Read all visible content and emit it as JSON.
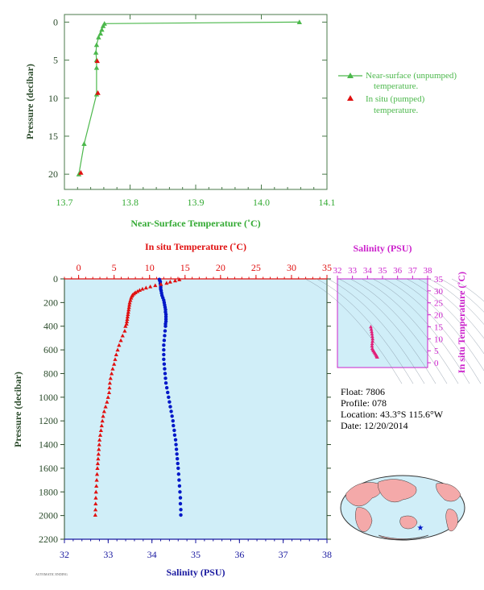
{
  "top_chart_legend": {
    "near_surface_line1": "Near-surface (unpumped)",
    "near_surface_line2": "temperature.",
    "in_situ_line1": "In situ (pumped)",
    "in_situ_line2": "temperature."
  },
  "info": {
    "float": "Float:  7806",
    "profile": "Profile:  078",
    "location": "Location:  43.3°S  115.6°W",
    "date": "Date:  12/20/2014"
  },
  "footer_code": "AUTOMATIC ENDING",
  "colors": {
    "near_surface": "#4cb84c",
    "in_situ": "#e01010",
    "salinity": "#0018c8",
    "salinity_axis": "#1a1aa0",
    "magenta": "#cc22cc",
    "plot_bg": "#d0eef8",
    "axis_green": "#33aa33",
    "label_dark": "#2a4a2a",
    "ts_points": "#e0207a"
  },
  "chart_data": [
    {
      "id": "top",
      "type": "line",
      "xlabel": "Near-Surface Temperature (˚C)",
      "ylabel": "Pressure (decibar)",
      "xlim": [
        13.7,
        14.1
      ],
      "ylim": [
        22,
        -1
      ],
      "xticks": [
        13.7,
        13.8,
        13.9,
        14.0,
        14.1
      ],
      "xtick_labels": [
        "13.7",
        "13.8",
        "13.9",
        "14.0",
        "14.1"
      ],
      "yticks": [
        0,
        5,
        10,
        15,
        20
      ],
      "series": [
        {
          "name": "Near-surface (unpumped) temperature.",
          "type": "line",
          "points": [
            [
              14.058,
              0.0
            ],
            [
              13.761,
              0.2
            ],
            [
              13.759,
              0.5
            ],
            [
              13.757,
              1.0
            ],
            [
              13.755,
              1.5
            ],
            [
              13.752,
              2.0
            ],
            [
              13.749,
              3.0
            ],
            [
              13.748,
              4.0
            ],
            [
              13.749,
              5.0
            ],
            [
              13.749,
              6.0
            ],
            [
              13.749,
              9.5
            ],
            [
              13.73,
              16.0
            ],
            [
              13.722,
              20.0
            ]
          ]
        },
        {
          "name": "In situ (pumped) temperature.",
          "type": "scatter",
          "points": [
            [
              13.75,
              5.1
            ],
            [
              13.751,
              9.3
            ],
            [
              13.725,
              19.8
            ]
          ]
        }
      ]
    },
    {
      "id": "main",
      "type": "scatter",
      "ylabel": "Pressure (decibar)",
      "top_xlabel": "In situ Temperature (˚C)",
      "bottom_xlabel": "Salinity (PSU)",
      "temp_xlim": [
        -2,
        35
      ],
      "temp_ticks": [
        0,
        5,
        10,
        15,
        20,
        25,
        30,
        35
      ],
      "sal_xlim": [
        32,
        38
      ],
      "sal_ticks": [
        32,
        33,
        34,
        35,
        36,
        37,
        38
      ],
      "ylim": [
        2200,
        0
      ],
      "yticks": [
        0,
        200,
        400,
        600,
        800,
        1000,
        1200,
        1400,
        1600,
        1800,
        2000,
        2200
      ],
      "temperature": [
        [
          14.2,
          5
        ],
        [
          13.6,
          15
        ],
        [
          12.9,
          25
        ],
        [
          12.4,
          35
        ],
        [
          11.6,
          45
        ],
        [
          10.8,
          55
        ],
        [
          10.1,
          65
        ],
        [
          9.5,
          75
        ],
        [
          9.0,
          85
        ],
        [
          8.6,
          95
        ],
        [
          8.3,
          105
        ],
        [
          8.0,
          115
        ],
        [
          7.8,
          125
        ],
        [
          7.6,
          135
        ],
        [
          7.5,
          145
        ],
        [
          7.4,
          160
        ],
        [
          7.3,
          180
        ],
        [
          7.2,
          200
        ],
        [
          7.15,
          220
        ],
        [
          7.1,
          240
        ],
        [
          7.05,
          260
        ],
        [
          7.0,
          280
        ],
        [
          6.95,
          300
        ],
        [
          6.9,
          320
        ],
        [
          6.85,
          340
        ],
        [
          6.8,
          360
        ],
        [
          6.75,
          380
        ],
        [
          6.6,
          400
        ],
        [
          6.5,
          440
        ],
        [
          6.2,
          480
        ],
        [
          5.95,
          520
        ],
        [
          5.7,
          560
        ],
        [
          5.5,
          600
        ],
        [
          5.3,
          640
        ],
        [
          5.15,
          680
        ],
        [
          5.0,
          720
        ],
        [
          4.8,
          760
        ],
        [
          4.65,
          800
        ],
        [
          4.5,
          840
        ],
        [
          4.4,
          880
        ],
        [
          4.35,
          920
        ],
        [
          4.3,
          960
        ],
        [
          4.15,
          1000
        ],
        [
          4.0,
          1040
        ],
        [
          3.8,
          1080
        ],
        [
          3.6,
          1120
        ],
        [
          3.45,
          1160
        ],
        [
          3.35,
          1200
        ],
        [
          3.25,
          1240
        ],
        [
          3.15,
          1280
        ],
        [
          3.05,
          1320
        ],
        [
          2.95,
          1360
        ],
        [
          2.9,
          1400
        ],
        [
          2.85,
          1440
        ],
        [
          2.8,
          1480
        ],
        [
          2.75,
          1520
        ],
        [
          2.7,
          1560
        ],
        [
          2.65,
          1600
        ],
        [
          2.6,
          1650
        ],
        [
          2.55,
          1700
        ],
        [
          2.5,
          1750
        ],
        [
          2.45,
          1800
        ],
        [
          2.42,
          1850
        ],
        [
          2.4,
          1900
        ],
        [
          2.38,
          1950
        ],
        [
          2.35,
          1995
        ]
      ],
      "salinity": [
        [
          34.17,
          5
        ],
        [
          34.18,
          15
        ],
        [
          34.19,
          25
        ],
        [
          34.19,
          40
        ],
        [
          34.2,
          55
        ],
        [
          34.2,
          70
        ],
        [
          34.2,
          85
        ],
        [
          34.21,
          100
        ],
        [
          34.22,
          120
        ],
        [
          34.23,
          140
        ],
        [
          34.25,
          160
        ],
        [
          34.27,
          180
        ],
        [
          34.28,
          200
        ],
        [
          34.29,
          220
        ],
        [
          34.3,
          240
        ],
        [
          34.31,
          260
        ],
        [
          34.31,
          280
        ],
        [
          34.32,
          300
        ],
        [
          34.32,
          320
        ],
        [
          34.32,
          340
        ],
        [
          34.32,
          360
        ],
        [
          34.31,
          380
        ],
        [
          34.31,
          400
        ],
        [
          34.3,
          440
        ],
        [
          34.29,
          480
        ],
        [
          34.28,
          520
        ],
        [
          34.27,
          560
        ],
        [
          34.27,
          600
        ],
        [
          34.27,
          640
        ],
        [
          34.27,
          680
        ],
        [
          34.28,
          720
        ],
        [
          34.29,
          760
        ],
        [
          34.3,
          800
        ],
        [
          34.31,
          840
        ],
        [
          34.32,
          880
        ],
        [
          34.34,
          920
        ],
        [
          34.36,
          960
        ],
        [
          34.38,
          1000
        ],
        [
          34.4,
          1040
        ],
        [
          34.42,
          1080
        ],
        [
          34.44,
          1120
        ],
        [
          34.46,
          1160
        ],
        [
          34.48,
          1200
        ],
        [
          34.49,
          1240
        ],
        [
          34.51,
          1280
        ],
        [
          34.52,
          1320
        ],
        [
          34.54,
          1360
        ],
        [
          34.55,
          1400
        ],
        [
          34.56,
          1440
        ],
        [
          34.57,
          1480
        ],
        [
          34.58,
          1520
        ],
        [
          34.59,
          1560
        ],
        [
          34.6,
          1600
        ],
        [
          34.61,
          1650
        ],
        [
          34.62,
          1700
        ],
        [
          34.63,
          1750
        ],
        [
          34.64,
          1800
        ],
        [
          34.65,
          1850
        ],
        [
          34.65,
          1900
        ],
        [
          34.66,
          1950
        ],
        [
          34.66,
          1995
        ]
      ]
    },
    {
      "id": "ts",
      "type": "scatter",
      "xlabel": "Salinity (PSU)",
      "ylabel": "In situ Temperature (˚C)",
      "xlim": [
        32,
        38
      ],
      "xticks": [
        32,
        33,
        34,
        35,
        36,
        37,
        38
      ],
      "ylim": [
        -2,
        35
      ],
      "yticks": [
        0,
        5,
        10,
        15,
        20,
        25,
        30,
        35
      ],
      "points": [
        [
          34.22,
          15.0
        ],
        [
          34.25,
          14.0
        ],
        [
          34.28,
          13.0
        ],
        [
          34.3,
          12.0
        ],
        [
          34.32,
          11.0
        ],
        [
          34.34,
          10.0
        ],
        [
          34.33,
          9.0
        ],
        [
          34.31,
          8.0
        ],
        [
          34.3,
          7.0
        ],
        [
          34.32,
          6.0
        ],
        [
          34.36,
          5.5
        ],
        [
          34.4,
          5.0
        ],
        [
          34.45,
          4.5
        ],
        [
          34.5,
          4.0
        ],
        [
          34.55,
          3.5
        ],
        [
          34.6,
          3.0
        ],
        [
          34.62,
          2.6
        ],
        [
          34.65,
          2.4
        ]
      ]
    }
  ]
}
